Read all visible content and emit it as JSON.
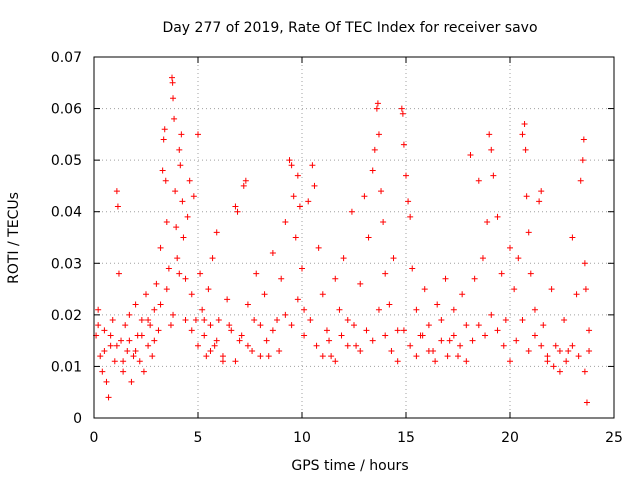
{
  "chart_data": {
    "type": "scatter",
    "title": "Day 277 of 2019, Rate Of TEC Index for receiver savo",
    "xlabel": "GPS time / hours",
    "ylabel": "ROTI / TECUs",
    "xlim": [
      0,
      25
    ],
    "ylim": [
      0,
      0.07
    ],
    "x_ticks": [
      "0",
      "5",
      "10",
      "15",
      "20",
      "25"
    ],
    "y_ticks": [
      "0",
      "0.01",
      "0.02",
      "0.03",
      "0.04",
      "0.05",
      "0.06",
      "0.07"
    ],
    "grid": true,
    "marker": "+",
    "color": "#ff0000",
    "series": [
      {
        "points": [
          [
            0.1,
            0.016
          ],
          [
            0.2,
            0.021
          ],
          [
            0.3,
            0.012
          ],
          [
            0.4,
            0.009
          ],
          [
            0.5,
            0.017
          ],
          [
            0.6,
            0.007
          ],
          [
            0.7,
            0.004
          ],
          [
            0.8,
            0.014
          ],
          [
            0.9,
            0.019
          ],
          [
            1.0,
            0.011
          ],
          [
            1.1,
            0.044
          ],
          [
            1.15,
            0.041
          ],
          [
            1.2,
            0.028
          ],
          [
            1.3,
            0.015
          ],
          [
            1.4,
            0.009
          ],
          [
            1.5,
            0.018
          ],
          [
            1.6,
            0.013
          ],
          [
            1.7,
            0.02
          ],
          [
            1.8,
            0.007
          ],
          [
            1.9,
            0.012
          ],
          [
            2.0,
            0.022
          ],
          [
            2.1,
            0.016
          ],
          [
            2.2,
            0.011
          ],
          [
            2.3,
            0.019
          ],
          [
            2.4,
            0.009
          ],
          [
            2.5,
            0.024
          ],
          [
            2.6,
            0.014
          ],
          [
            2.7,
            0.018
          ],
          [
            2.8,
            0.012
          ],
          [
            2.9,
            0.021
          ],
          [
            3.0,
            0.026
          ],
          [
            3.1,
            0.017
          ],
          [
            3.2,
            0.033
          ],
          [
            3.3,
            0.048
          ],
          [
            3.35,
            0.054
          ],
          [
            3.4,
            0.056
          ],
          [
            3.45,
            0.046
          ],
          [
            3.5,
            0.038
          ],
          [
            3.6,
            0.029
          ],
          [
            3.7,
            0.018
          ],
          [
            3.75,
            0.066
          ],
          [
            3.78,
            0.065
          ],
          [
            3.8,
            0.062
          ],
          [
            3.85,
            0.058
          ],
          [
            3.9,
            0.044
          ],
          [
            3.95,
            0.037
          ],
          [
            4.0,
            0.031
          ],
          [
            4.1,
            0.052
          ],
          [
            4.15,
            0.049
          ],
          [
            4.2,
            0.055
          ],
          [
            4.25,
            0.042
          ],
          [
            4.3,
            0.035
          ],
          [
            4.4,
            0.027
          ],
          [
            4.5,
            0.039
          ],
          [
            4.6,
            0.046
          ],
          [
            4.7,
            0.024
          ],
          [
            4.8,
            0.043
          ],
          [
            4.9,
            0.019
          ],
          [
            5.0,
            0.055
          ],
          [
            5.1,
            0.028
          ],
          [
            5.2,
            0.021
          ],
          [
            5.3,
            0.016
          ],
          [
            5.4,
            0.012
          ],
          [
            5.5,
            0.025
          ],
          [
            5.6,
            0.018
          ],
          [
            5.7,
            0.031
          ],
          [
            5.8,
            0.014
          ],
          [
            5.9,
            0.036
          ],
          [
            6.0,
            0.019
          ],
          [
            6.2,
            0.011
          ],
          [
            6.4,
            0.023
          ],
          [
            6.6,
            0.017
          ],
          [
            6.8,
            0.041
          ],
          [
            6.9,
            0.04
          ],
          [
            7.0,
            0.015
          ],
          [
            7.2,
            0.045
          ],
          [
            7.3,
            0.046
          ],
          [
            7.4,
            0.022
          ],
          [
            7.6,
            0.013
          ],
          [
            7.8,
            0.028
          ],
          [
            8.0,
            0.018
          ],
          [
            8.2,
            0.024
          ],
          [
            8.4,
            0.012
          ],
          [
            8.6,
            0.032
          ],
          [
            8.8,
            0.019
          ],
          [
            9.0,
            0.027
          ],
          [
            9.2,
            0.038
          ],
          [
            9.4,
            0.05
          ],
          [
            9.5,
            0.049
          ],
          [
            9.6,
            0.043
          ],
          [
            9.7,
            0.035
          ],
          [
            9.8,
            0.047
          ],
          [
            9.9,
            0.041
          ],
          [
            10.0,
            0.029
          ],
          [
            10.1,
            0.021
          ],
          [
            10.3,
            0.042
          ],
          [
            10.5,
            0.049
          ],
          [
            10.6,
            0.045
          ],
          [
            10.8,
            0.033
          ],
          [
            11.0,
            0.024
          ],
          [
            11.2,
            0.017
          ],
          [
            11.4,
            0.012
          ],
          [
            11.6,
            0.027
          ],
          [
            11.8,
            0.021
          ],
          [
            12.0,
            0.031
          ],
          [
            12.2,
            0.019
          ],
          [
            12.4,
            0.04
          ],
          [
            12.6,
            0.014
          ],
          [
            12.8,
            0.026
          ],
          [
            13.0,
            0.043
          ],
          [
            13.2,
            0.035
          ],
          [
            13.4,
            0.048
          ],
          [
            13.5,
            0.052
          ],
          [
            13.6,
            0.06
          ],
          [
            13.65,
            0.061
          ],
          [
            13.7,
            0.055
          ],
          [
            13.8,
            0.044
          ],
          [
            13.9,
            0.038
          ],
          [
            14.0,
            0.028
          ],
          [
            14.2,
            0.022
          ],
          [
            14.4,
            0.031
          ],
          [
            14.6,
            0.017
          ],
          [
            14.8,
            0.06
          ],
          [
            14.85,
            0.059
          ],
          [
            14.9,
            0.053
          ],
          [
            15.0,
            0.047
          ],
          [
            15.1,
            0.042
          ],
          [
            15.2,
            0.039
          ],
          [
            15.3,
            0.029
          ],
          [
            15.5,
            0.021
          ],
          [
            15.7,
            0.016
          ],
          [
            15.9,
            0.025
          ],
          [
            16.1,
            0.018
          ],
          [
            16.3,
            0.013
          ],
          [
            16.5,
            0.022
          ],
          [
            16.7,
            0.019
          ],
          [
            16.9,
            0.027
          ],
          [
            17.1,
            0.015
          ],
          [
            17.3,
            0.021
          ],
          [
            17.5,
            0.012
          ],
          [
            17.7,
            0.024
          ],
          [
            17.9,
            0.018
          ],
          [
            18.1,
            0.051
          ],
          [
            18.3,
            0.027
          ],
          [
            18.5,
            0.046
          ],
          [
            18.7,
            0.031
          ],
          [
            18.9,
            0.038
          ],
          [
            19.0,
            0.055
          ],
          [
            19.1,
            0.052
          ],
          [
            19.2,
            0.047
          ],
          [
            19.4,
            0.039
          ],
          [
            19.6,
            0.028
          ],
          [
            19.8,
            0.019
          ],
          [
            20.0,
            0.033
          ],
          [
            20.2,
            0.025
          ],
          [
            20.4,
            0.031
          ],
          [
            20.6,
            0.055
          ],
          [
            20.7,
            0.057
          ],
          [
            20.75,
            0.052
          ],
          [
            20.8,
            0.043
          ],
          [
            20.9,
            0.036
          ],
          [
            21.0,
            0.028
          ],
          [
            21.2,
            0.021
          ],
          [
            21.4,
            0.042
          ],
          [
            21.5,
            0.044
          ],
          [
            21.6,
            0.018
          ],
          [
            21.8,
            0.011
          ],
          [
            22.0,
            0.025
          ],
          [
            22.2,
            0.014
          ],
          [
            22.4,
            0.009
          ],
          [
            22.6,
            0.019
          ],
          [
            22.8,
            0.013
          ],
          [
            23.0,
            0.035
          ],
          [
            23.2,
            0.024
          ],
          [
            23.4,
            0.046
          ],
          [
            23.5,
            0.05
          ],
          [
            23.55,
            0.054
          ],
          [
            23.6,
            0.03
          ],
          [
            23.65,
            0.025
          ],
          [
            23.7,
            0.003
          ],
          [
            23.8,
            0.017
          ],
          [
            0.2,
            0.018
          ],
          [
            0.5,
            0.013
          ],
          [
            0.8,
            0.016
          ],
          [
            1.1,
            0.014
          ],
          [
            1.4,
            0.011
          ],
          [
            1.7,
            0.015
          ],
          [
            2.0,
            0.013
          ],
          [
            2.3,
            0.016
          ],
          [
            2.6,
            0.019
          ],
          [
            2.9,
            0.015
          ],
          [
            3.2,
            0.022
          ],
          [
            3.5,
            0.025
          ],
          [
            3.8,
            0.02
          ],
          [
            4.1,
            0.028
          ],
          [
            4.4,
            0.019
          ],
          [
            4.7,
            0.017
          ],
          [
            5.0,
            0.014
          ],
          [
            5.3,
            0.019
          ],
          [
            5.6,
            0.013
          ],
          [
            5.9,
            0.015
          ],
          [
            6.2,
            0.012
          ],
          [
            6.5,
            0.018
          ],
          [
            6.8,
            0.011
          ],
          [
            7.1,
            0.016
          ],
          [
            7.4,
            0.014
          ],
          [
            7.7,
            0.019
          ],
          [
            8.0,
            0.012
          ],
          [
            8.3,
            0.015
          ],
          [
            8.6,
            0.017
          ],
          [
            8.9,
            0.013
          ],
          [
            9.2,
            0.02
          ],
          [
            9.5,
            0.018
          ],
          [
            9.8,
            0.023
          ],
          [
            10.1,
            0.016
          ],
          [
            10.4,
            0.019
          ],
          [
            10.7,
            0.014
          ],
          [
            11.0,
            0.012
          ],
          [
            11.3,
            0.015
          ],
          [
            11.6,
            0.011
          ],
          [
            11.9,
            0.016
          ],
          [
            12.2,
            0.014
          ],
          [
            12.5,
            0.018
          ],
          [
            12.8,
            0.013
          ],
          [
            13.1,
            0.017
          ],
          [
            13.4,
            0.015
          ],
          [
            13.7,
            0.021
          ],
          [
            14.0,
            0.016
          ],
          [
            14.3,
            0.013
          ],
          [
            14.6,
            0.011
          ],
          [
            14.9,
            0.017
          ],
          [
            15.2,
            0.014
          ],
          [
            15.5,
            0.012
          ],
          [
            15.8,
            0.016
          ],
          [
            16.1,
            0.013
          ],
          [
            16.4,
            0.011
          ],
          [
            16.7,
            0.015
          ],
          [
            17.0,
            0.012
          ],
          [
            17.3,
            0.016
          ],
          [
            17.6,
            0.014
          ],
          [
            17.9,
            0.011
          ],
          [
            18.2,
            0.015
          ],
          [
            18.5,
            0.018
          ],
          [
            18.8,
            0.016
          ],
          [
            19.1,
            0.02
          ],
          [
            19.4,
            0.017
          ],
          [
            19.7,
            0.014
          ],
          [
            20.0,
            0.011
          ],
          [
            20.3,
            0.015
          ],
          [
            20.6,
            0.019
          ],
          [
            20.9,
            0.013
          ],
          [
            21.2,
            0.016
          ],
          [
            21.5,
            0.014
          ],
          [
            21.8,
            0.012
          ],
          [
            22.1,
            0.01
          ],
          [
            22.4,
            0.013
          ],
          [
            22.7,
            0.011
          ],
          [
            23.0,
            0.014
          ],
          [
            23.3,
            0.012
          ],
          [
            23.6,
            0.009
          ],
          [
            23.8,
            0.013
          ]
        ]
      }
    ]
  }
}
